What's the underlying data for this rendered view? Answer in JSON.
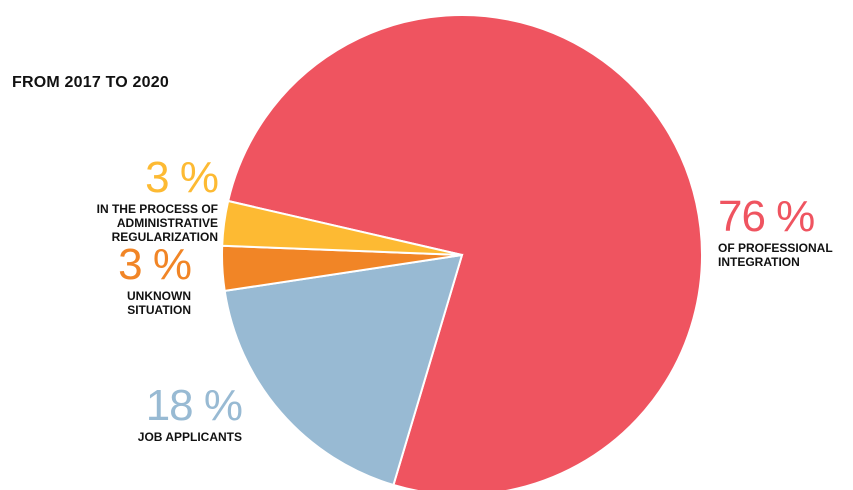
{
  "title": "FROM 2017 TO 2020",
  "chart_data": {
    "type": "pie",
    "title": "FROM 2017 TO 2020",
    "slices": [
      {
        "key": "prof",
        "pct_label": "76 %",
        "description": "OF PROFESSIONAL INTEGRATION",
        "value": 76,
        "color": "#EF5460"
      },
      {
        "key": "jobs",
        "pct_label": "18 %",
        "description": "JOB APPLICANTS",
        "value": 18,
        "color": "#98BAD3"
      },
      {
        "key": "unknown",
        "pct_label": "3 %",
        "description": "UNKNOWN SITUATION",
        "value": 3,
        "color": "#F18526"
      },
      {
        "key": "admin",
        "pct_label": "3 %",
        "description": "IN THE PROCESS OF ADMINISTRATIVE REGULARIZATION",
        "value": 3,
        "color": "#FDBA33"
      }
    ]
  }
}
